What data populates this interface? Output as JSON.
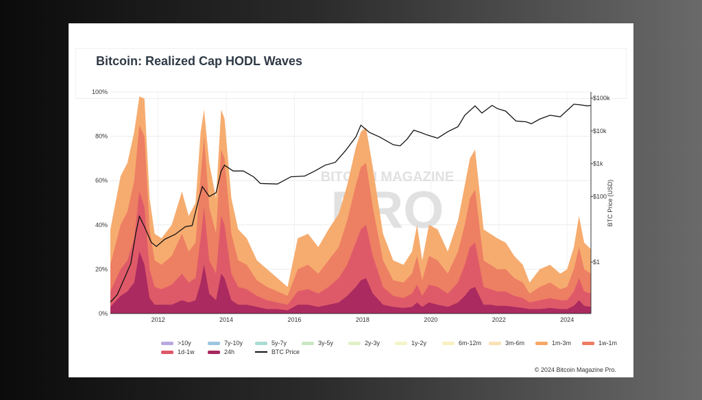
{
  "title": "Bitcoin: Realized Cap HODL Waves",
  "copyright": "© 2024 Bitcoin Magazine Pro.",
  "watermark": "BITCOIN MAGAZINE PRO",
  "chart_data": {
    "type": "area",
    "title": "Bitcoin: Realized Cap HODL Waves",
    "y_axis": {
      "ylim": [
        0,
        100
      ],
      "ticks": [
        "0%",
        "20%",
        "40%",
        "60%",
        "80%",
        "100%"
      ]
    },
    "y2_axis": {
      "label": "BTC Price (USD)",
      "scale": "log",
      "ticks": [
        "$1",
        "$100",
        "$1k",
        "$10k",
        "$100k"
      ]
    },
    "x_axis": {
      "xlim": [
        2010.6,
        2024.7
      ],
      "ticks": [
        "2012",
        "2014",
        "2016",
        "2018",
        "2020",
        "2022",
        "2024"
      ]
    },
    "grid": true,
    "legend": "bottom",
    "legend_items": [
      {
        "name": ">10y",
        "color": "#b9a8e0"
      },
      {
        "name": "7y-10y",
        "color": "#9cc6e0"
      },
      {
        "name": "5y-7y",
        "color": "#a9ddd3"
      },
      {
        "name": "3y-5y",
        "color": "#c9e7c3"
      },
      {
        "name": "2y-3y",
        "color": "#e1f0c6"
      },
      {
        "name": "1y-2y",
        "color": "#f5f4c8"
      },
      {
        "name": "6m-12m",
        "color": "#faf0c0"
      },
      {
        "name": "3m-6m",
        "color": "#f8e1b4"
      },
      {
        "name": "1m-3m",
        "color": "#f6a867"
      },
      {
        "name": "1w-1m",
        "color": "#ec7c62"
      },
      {
        "name": "1d-1w",
        "color": "#de5869"
      },
      {
        "name": "24h",
        "color": "#a8285f"
      },
      {
        "name": "BTC Price",
        "color": "#111111"
      }
    ],
    "series": [
      {
        "name": "1m-3m",
        "color": "#f6a867",
        "x": [
          2010.6,
          2010.9,
          2011.1,
          2011.3,
          2011.45,
          2011.6,
          2011.75,
          2011.9,
          2012.1,
          2012.4,
          2012.7,
          2012.9,
          2013.1,
          2013.25,
          2013.35,
          2013.5,
          2013.7,
          2013.85,
          2013.95,
          2014.15,
          2014.35,
          2014.6,
          2014.9,
          2015.2,
          2015.5,
          2015.8,
          2016.1,
          2016.4,
          2016.7,
          2017.0,
          2017.3,
          2017.55,
          2017.8,
          2017.95,
          2018.1,
          2018.3,
          2018.6,
          2018.9,
          2019.2,
          2019.45,
          2019.6,
          2019.75,
          2019.95,
          2020.2,
          2020.5,
          2020.8,
          2021.0,
          2021.15,
          2021.3,
          2021.55,
          2021.75,
          2021.95,
          2022.2,
          2022.45,
          2022.7,
          2022.9,
          2023.2,
          2023.5,
          2023.8,
          2024.0,
          2024.2,
          2024.35,
          2024.5,
          2024.7
        ],
        "values": [
          38,
          62,
          68,
          82,
          98,
          97,
          52,
          36,
          34,
          40,
          55,
          44,
          50,
          82,
          92,
          68,
          52,
          92,
          88,
          52,
          38,
          34,
          24,
          20,
          16,
          12,
          34,
          36,
          30,
          38,
          45,
          58,
          75,
          82,
          84,
          66,
          36,
          24,
          22,
          28,
          40,
          24,
          40,
          38,
          28,
          42,
          58,
          70,
          74,
          38,
          36,
          34,
          32,
          26,
          22,
          14,
          20,
          22,
          18,
          20,
          30,
          44,
          32,
          29
        ]
      },
      {
        "name": "1w-1m",
        "color": "#ec7c62",
        "x": [
          2010.6,
          2010.9,
          2011.1,
          2011.3,
          2011.45,
          2011.6,
          2011.75,
          2011.9,
          2012.1,
          2012.4,
          2012.7,
          2012.9,
          2013.1,
          2013.25,
          2013.35,
          2013.5,
          2013.7,
          2013.85,
          2013.95,
          2014.15,
          2014.35,
          2014.6,
          2014.9,
          2015.2,
          2015.5,
          2015.8,
          2016.1,
          2016.4,
          2016.7,
          2017.0,
          2017.3,
          2017.55,
          2017.8,
          2017.95,
          2018.1,
          2018.3,
          2018.6,
          2018.9,
          2019.2,
          2019.45,
          2019.6,
          2019.75,
          2019.95,
          2020.2,
          2020.5,
          2020.8,
          2021.0,
          2021.15,
          2021.3,
          2021.55,
          2021.75,
          2021.95,
          2022.2,
          2022.45,
          2022.7,
          2022.9,
          2023.2,
          2023.5,
          2023.8,
          2024.0,
          2024.2,
          2024.35,
          2024.5,
          2024.7
        ],
        "values": [
          22,
          40,
          46,
          60,
          85,
          80,
          38,
          24,
          22,
          26,
          36,
          28,
          32,
          62,
          80,
          48,
          36,
          74,
          70,
          36,
          24,
          22,
          15,
          12,
          10,
          8,
          20,
          22,
          18,
          24,
          30,
          42,
          58,
          66,
          68,
          48,
          24,
          15,
          14,
          18,
          26,
          15,
          26,
          24,
          18,
          28,
          40,
          52,
          56,
          24,
          22,
          20,
          20,
          16,
          14,
          9,
          12,
          14,
          11,
          12,
          20,
          30,
          20,
          18
        ]
      },
      {
        "name": "1d-1w",
        "color": "#de5869",
        "x": [
          2010.6,
          2010.9,
          2011.1,
          2011.3,
          2011.45,
          2011.6,
          2011.75,
          2011.9,
          2012.1,
          2012.4,
          2012.7,
          2012.9,
          2013.1,
          2013.25,
          2013.35,
          2013.5,
          2013.7,
          2013.85,
          2013.95,
          2014.15,
          2014.35,
          2014.6,
          2014.9,
          2015.2,
          2015.5,
          2015.8,
          2016.1,
          2016.4,
          2016.7,
          2017.0,
          2017.3,
          2017.55,
          2017.8,
          2017.95,
          2018.1,
          2018.3,
          2018.6,
          2018.9,
          2019.2,
          2019.45,
          2019.6,
          2019.75,
          2019.95,
          2020.2,
          2020.5,
          2020.8,
          2021.0,
          2021.15,
          2021.3,
          2021.55,
          2021.75,
          2021.95,
          2022.2,
          2022.45,
          2022.7,
          2022.9,
          2023.2,
          2023.5,
          2023.8,
          2024.0,
          2024.2,
          2024.35,
          2024.5,
          2024.7
        ],
        "values": [
          10,
          20,
          24,
          34,
          55,
          48,
          20,
          12,
          11,
          13,
          18,
          14,
          16,
          34,
          48,
          24,
          18,
          44,
          40,
          18,
          12,
          11,
          8,
          6,
          5,
          4,
          10,
          11,
          9,
          12,
          16,
          22,
          32,
          38,
          40,
          26,
          12,
          8,
          7,
          9,
          13,
          8,
          13,
          12,
          9,
          14,
          22,
          30,
          32,
          12,
          11,
          10,
          10,
          8,
          7,
          5,
          6,
          7,
          6,
          6,
          10,
          16,
          10,
          9
        ]
      },
      {
        "name": "24h",
        "color": "#a8285f",
        "x": [
          2010.6,
          2010.9,
          2011.1,
          2011.3,
          2011.45,
          2011.6,
          2011.75,
          2011.9,
          2012.1,
          2012.4,
          2012.7,
          2012.9,
          2013.1,
          2013.25,
          2013.35,
          2013.5,
          2013.7,
          2013.85,
          2013.95,
          2014.15,
          2014.35,
          2014.6,
          2014.9,
          2015.2,
          2015.5,
          2015.8,
          2016.1,
          2016.4,
          2016.7,
          2017.0,
          2017.3,
          2017.55,
          2017.8,
          2017.95,
          2018.1,
          2018.3,
          2018.6,
          2018.9,
          2019.2,
          2019.45,
          2019.6,
          2019.75,
          2019.95,
          2020.2,
          2020.5,
          2020.8,
          2021.0,
          2021.15,
          2021.3,
          2021.55,
          2021.75,
          2021.95,
          2022.2,
          2022.45,
          2022.7,
          2022.9,
          2023.2,
          2023.5,
          2023.8,
          2024.0,
          2024.2,
          2024.35,
          2024.5,
          2024.7
        ],
        "values": [
          3,
          8,
          10,
          14,
          28,
          22,
          7,
          4,
          4,
          4,
          6,
          5,
          6,
          14,
          22,
          9,
          6,
          18,
          16,
          6,
          4,
          4,
          3,
          2,
          2,
          1.5,
          4,
          4,
          3,
          4,
          5,
          8,
          12,
          15,
          16,
          9,
          4,
          3,
          2.5,
          3,
          5,
          3,
          5,
          4,
          3,
          5,
          8,
          11,
          12,
          4,
          4,
          3.5,
          3.5,
          3,
          2.5,
          2,
          2,
          2.5,
          2,
          2,
          3.5,
          6,
          3.5,
          3
        ]
      },
      {
        "name": "BTC Price",
        "color": "#111111",
        "axis": "y2",
        "x": [
          2010.6,
          2010.8,
          2011.0,
          2011.2,
          2011.35,
          2011.45,
          2011.6,
          2011.8,
          2011.95,
          2012.2,
          2012.5,
          2012.8,
          2013.0,
          2013.2,
          2013.3,
          2013.5,
          2013.7,
          2013.85,
          2013.95,
          2014.2,
          2014.5,
          2014.8,
          2015.0,
          2015.5,
          2015.9,
          2016.3,
          2016.6,
          2016.9,
          2017.2,
          2017.5,
          2017.8,
          2017.95,
          2018.2,
          2018.5,
          2018.9,
          2019.1,
          2019.3,
          2019.5,
          2019.7,
          2019.9,
          2020.2,
          2020.5,
          2020.8,
          2021.0,
          2021.3,
          2021.5,
          2021.8,
          2021.95,
          2022.2,
          2022.5,
          2022.8,
          2022.95,
          2023.2,
          2023.5,
          2023.8,
          2024.0,
          2024.2,
          2024.4,
          2024.6,
          2024.7
        ],
        "values": [
          0.06,
          0.1,
          0.3,
          0.9,
          8,
          25,
          12,
          4,
          3,
          5,
          7,
          12,
          13,
          90,
          200,
          100,
          130,
          600,
          900,
          600,
          600,
          400,
          250,
          240,
          400,
          420,
          600,
          900,
          1100,
          2500,
          6500,
          15000,
          9000,
          6500,
          3800,
          3500,
          5500,
          10500,
          9000,
          7500,
          6000,
          9500,
          13500,
          30000,
          58000,
          35000,
          60000,
          48000,
          40000,
          20000,
          19000,
          16500,
          23000,
          30000,
          27000,
          42000,
          65000,
          62000,
          58000,
          60000
        ]
      }
    ]
  }
}
